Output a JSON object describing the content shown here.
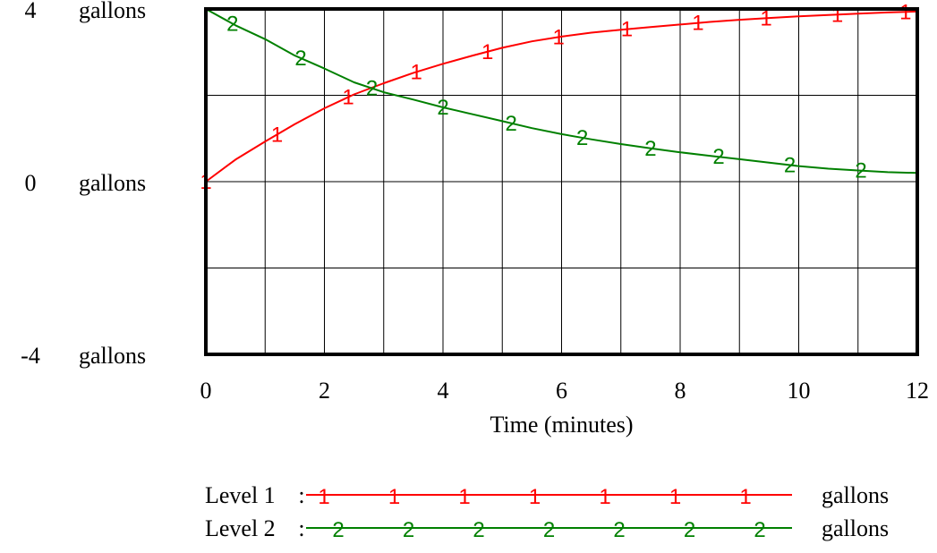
{
  "chart_data": {
    "type": "line",
    "title": "",
    "xlabel": "Time (minutes)",
    "ylabel": "",
    "xlim": [
      0,
      12
    ],
    "ylim": [
      -4,
      4
    ],
    "x_ticks": [
      "0",
      "2",
      "4",
      "6",
      "8",
      "10",
      "12"
    ],
    "y_ticks": [
      {
        "value": "4",
        "unit": "gallons"
      },
      {
        "value": "0",
        "unit": "gallons"
      },
      {
        "value": "-4",
        "unit": "gallons"
      }
    ],
    "grid": true,
    "legend_position": "bottom",
    "series": [
      {
        "name": "Level 1",
        "marker_label": "1",
        "unit": "gallons",
        "color": "#ff0000",
        "x": [
          0,
          0.5,
          1,
          1.5,
          2,
          2.5,
          3,
          3.5,
          4,
          4.5,
          5,
          5.5,
          6,
          6.5,
          7,
          7.5,
          8,
          8.5,
          9,
          9.5,
          10,
          10.5,
          11,
          11.5,
          12
        ],
        "values": [
          0,
          0.51,
          0.93,
          1.33,
          1.7,
          2.02,
          2.28,
          2.52,
          2.73,
          2.92,
          3.1,
          3.25,
          3.36,
          3.45,
          3.52,
          3.58,
          3.64,
          3.7,
          3.75,
          3.79,
          3.83,
          3.86,
          3.89,
          3.92,
          3.94
        ]
      },
      {
        "name": "Level 2",
        "marker_label": "2",
        "unit": "gallons",
        "color": "#008000",
        "x": [
          0,
          0.5,
          1,
          1.5,
          2,
          2.5,
          3,
          3.5,
          4,
          4.5,
          5,
          5.5,
          6,
          6.5,
          7,
          7.5,
          8,
          8.5,
          9,
          9.5,
          10,
          10.5,
          11,
          11.5,
          12
        ],
        "values": [
          4,
          3.62,
          3.3,
          2.92,
          2.62,
          2.3,
          2.07,
          1.9,
          1.72,
          1.56,
          1.4,
          1.24,
          1.1,
          0.98,
          0.87,
          0.77,
          0.68,
          0.6,
          0.52,
          0.44,
          0.36,
          0.3,
          0.26,
          0.22,
          0.2
        ]
      }
    ],
    "marker_positions": {
      "Level 1": [
        0,
        1.2,
        2.4,
        3.55,
        4.75,
        5.95,
        7.1,
        8.3,
        9.45,
        10.65,
        11.8
      ],
      "Level 2": [
        0.45,
        1.6,
        2.8,
        4,
        5.15,
        6.35,
        7.5,
        8.65,
        9.85,
        11.05
      ]
    }
  }
}
